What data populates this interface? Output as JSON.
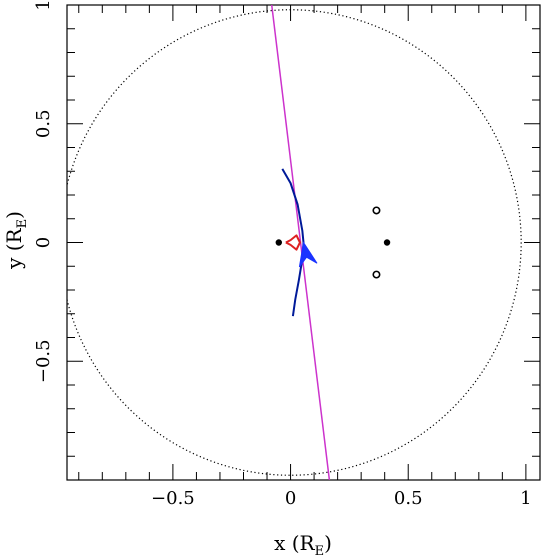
{
  "chart_data": {
    "type": "scatter",
    "title": "",
    "xlabel": "x (R",
    "xlabel_sub": "E",
    "xlabel_close": ")",
    "ylabel": "y (R",
    "ylabel_sub": "E",
    "ylabel_close": ")",
    "xlim": [
      -0.95,
      1.06
    ],
    "ylim": [
      -1.0,
      1.0
    ],
    "x_ticks": [
      {
        "v": -0.5,
        "label": "−0.5"
      },
      {
        "v": 0,
        "label": "0"
      },
      {
        "v": 0.5,
        "label": "0.5"
      },
      {
        "v": 1,
        "label": "1"
      }
    ],
    "y_ticks": [
      {
        "v": -0.5,
        "label": "−0.5"
      },
      {
        "v": 0,
        "label": "0"
      },
      {
        "v": 0.5,
        "label": "0.5"
      },
      {
        "v": 1,
        "label": "1"
      }
    ],
    "grid": false,
    "einstein_ring": {
      "center": [
        0,
        0
      ],
      "radius": 0.98,
      "style": "dotted",
      "color": "#000000"
    },
    "lens_positions": [
      [
        -0.05,
        0.0
      ],
      [
        0.41,
        0.0
      ]
    ],
    "image_positions": [
      [
        0.365,
        0.135
      ],
      [
        0.365,
        -0.135
      ]
    ],
    "source_trajectory": {
      "color": "#cc33cc",
      "points": [
        [
          -0.08,
          1.0
        ],
        [
          0.165,
          -1.0
        ]
      ]
    },
    "caustic": {
      "color": "#dd2222",
      "points": [
        [
          -0.02,
          0.0
        ],
        [
          0.0,
          0.01
        ],
        [
          0.025,
          0.03
        ],
        [
          0.04,
          0.0
        ],
        [
          0.025,
          -0.03
        ],
        [
          0.0,
          -0.01
        ],
        [
          -0.02,
          0.0
        ]
      ]
    },
    "image_track": {
      "color": "#001a99",
      "points": [
        [
          -0.035,
          0.31
        ],
        [
          0.0,
          0.25
        ],
        [
          0.03,
          0.16
        ],
        [
          0.05,
          0.05
        ],
        [
          0.055,
          0.0
        ],
        [
          0.05,
          -0.07
        ],
        [
          0.035,
          -0.16
        ],
        [
          0.02,
          -0.24
        ],
        [
          0.01,
          -0.31
        ]
      ]
    },
    "arrow": {
      "color": "#1a33ff",
      "tip": [
        0.055,
        0.0
      ],
      "base": [
        0.075,
        -0.095
      ]
    }
  }
}
